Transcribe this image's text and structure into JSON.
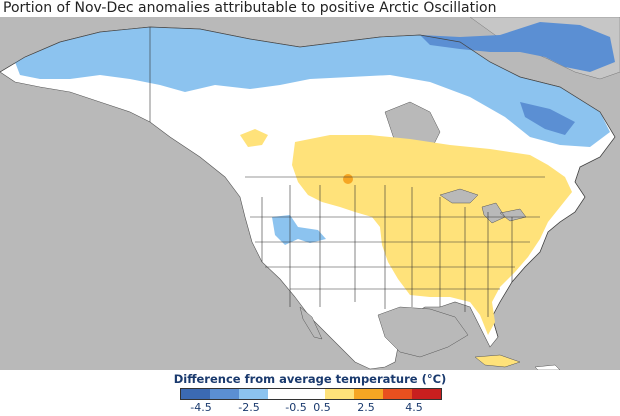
{
  "title": "Portion of Nov-Dec anomalies attributable to positive Arctic Oscillation",
  "legend": {
    "title": "Difference from average temperature (°C)",
    "colors": [
      "#3b6ab3",
      "#5b8fd3",
      "#8cc3ef",
      "#ffffff",
      "#ffffff",
      "#ffe27a",
      "#f6a623",
      "#e8501f",
      "#c81f1f"
    ],
    "ticks": [
      "-4.5",
      "-2.5",
      "-0.5",
      "0.5",
      "2.5",
      "4.5"
    ]
  },
  "map": {
    "ocean_color": "#b9b9b9",
    "neutral_color": "#ffffff",
    "cool_light": "#8cc3ef",
    "cool_mid": "#5b8fd3",
    "warm_light": "#ffe27a",
    "warm_mid": "#f6a623"
  }
}
